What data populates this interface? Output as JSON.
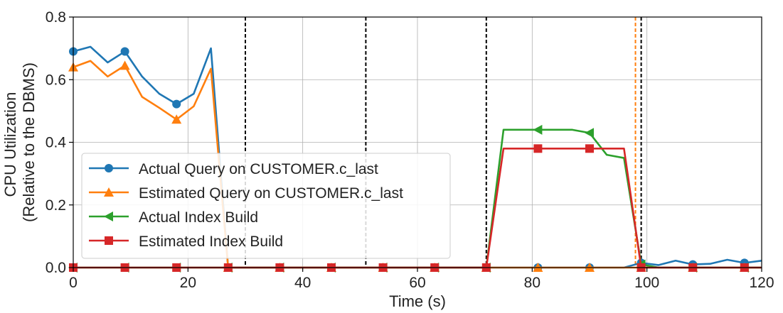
{
  "chart_data": {
    "type": "line",
    "xlabel": "Time (s)",
    "ylabel_lines": [
      "CPU Utilization",
      "(Relative to the DBMS)"
    ],
    "xlim": [
      0,
      120
    ],
    "ylim": [
      0,
      0.8
    ],
    "x_ticks": [
      0,
      20,
      40,
      60,
      80,
      100,
      120
    ],
    "y_ticks": [
      0.0,
      0.2,
      0.4,
      0.6,
      0.8
    ],
    "x_tick_labels": [
      "0",
      "20",
      "40",
      "60",
      "80",
      "100",
      "120"
    ],
    "y_tick_labels": [
      "0.0",
      "0.2",
      "0.4",
      "0.6",
      "0.8"
    ],
    "grid": true,
    "legend_position": "lower-left",
    "vertical_lines": [
      {
        "x": 30,
        "color": "#000000",
        "style": "dashed"
      },
      {
        "x": 51,
        "color": "#000000",
        "style": "dashed"
      },
      {
        "x": 72,
        "color": "#000000",
        "style": "dashed"
      },
      {
        "x": 98,
        "color": "#ff7f0e",
        "style": "dashed"
      },
      {
        "x": 99,
        "color": "#000000",
        "style": "dashed"
      }
    ],
    "series": [
      {
        "name": "Actual Query on CUSTOMER.c_last",
        "color": "#1f77b4",
        "marker": "circle",
        "x": [
          0,
          3,
          6,
          9,
          12,
          15,
          18,
          21,
          24,
          27,
          30,
          33,
          36,
          39,
          42,
          45,
          48,
          51,
          54,
          57,
          60,
          63,
          66,
          69,
          72,
          75,
          78,
          81,
          84,
          87,
          90,
          93,
          96,
          99,
          102,
          105,
          108,
          111,
          114,
          117,
          120
        ],
        "y": [
          0.69,
          0.705,
          0.655,
          0.69,
          0.61,
          0.555,
          0.522,
          0.555,
          0.7,
          0.0,
          0.0,
          0.0,
          0.0,
          0.0,
          0.0,
          0.0,
          0.0,
          0.0,
          0.0,
          0.0,
          0.0,
          0.0,
          0.0,
          0.0,
          0.0,
          0.0,
          0.0,
          0.0,
          0.0,
          0.0,
          0.0,
          0.0,
          0.0,
          0.015,
          0.008,
          0.022,
          0.01,
          0.012,
          0.025,
          0.015,
          0.022
        ],
        "marker_x": [
          0,
          9,
          18,
          27,
          36,
          45,
          54,
          63,
          72,
          81,
          90,
          99,
          108,
          117
        ]
      },
      {
        "name": "Estimated Query on CUSTOMER.c_last",
        "color": "#ff7f0e",
        "marker": "triangle-up",
        "x": [
          0,
          3,
          6,
          9,
          12,
          15,
          18,
          21,
          24,
          27,
          30,
          33,
          36,
          39,
          42,
          45,
          48,
          51,
          54,
          57,
          60,
          63,
          66,
          69,
          72,
          75,
          78,
          81,
          84,
          87,
          90,
          93,
          96,
          99,
          102,
          105,
          108,
          111,
          114,
          117,
          120
        ],
        "y": [
          0.64,
          0.66,
          0.61,
          0.645,
          0.545,
          0.51,
          0.473,
          0.515,
          0.635,
          0.0,
          0.0,
          0.0,
          0.0,
          0.0,
          0.0,
          0.0,
          0.0,
          0.0,
          0.0,
          0.0,
          0.0,
          0.0,
          0.0,
          0.0,
          0.0,
          0.0,
          0.0,
          0.0,
          0.0,
          0.0,
          0.0,
          0.0,
          0.0,
          0.0,
          0.0,
          0.0,
          0.0,
          0.0,
          0.0,
          0.0,
          0.0
        ],
        "marker_x": [
          0,
          9,
          18,
          27,
          36,
          45,
          54,
          63,
          72,
          81,
          90,
          99,
          108,
          117
        ]
      },
      {
        "name": "Actual Index Build",
        "color": "#2ca02c",
        "marker": "triangle-left",
        "x": [
          0,
          3,
          6,
          9,
          12,
          15,
          18,
          21,
          24,
          27,
          30,
          33,
          36,
          39,
          42,
          45,
          48,
          51,
          54,
          57,
          60,
          63,
          66,
          69,
          72,
          75,
          78,
          81,
          84,
          87,
          90,
          93,
          96,
          99,
          102,
          105,
          108,
          111,
          114,
          117,
          120
        ],
        "y": [
          0.0,
          0.0,
          0.0,
          0.0,
          0.0,
          0.0,
          0.0,
          0.0,
          0.0,
          0.0,
          0.0,
          0.0,
          0.0,
          0.0,
          0.0,
          0.0,
          0.0,
          0.0,
          0.0,
          0.0,
          0.0,
          0.0,
          0.0,
          0.0,
          0.0,
          0.44,
          0.44,
          0.44,
          0.44,
          0.44,
          0.43,
          0.36,
          0.35,
          0.01,
          0.0,
          0.0,
          0.0,
          0.0,
          0.0,
          0.0,
          0.0
        ],
        "marker_x": [
          0,
          9,
          18,
          27,
          36,
          45,
          54,
          63,
          72,
          81,
          90,
          99,
          108,
          117
        ]
      },
      {
        "name": "Estimated Index Build",
        "color": "#d62728",
        "marker": "square",
        "x": [
          0,
          3,
          6,
          9,
          12,
          15,
          18,
          21,
          24,
          27,
          30,
          33,
          36,
          39,
          42,
          45,
          48,
          51,
          54,
          57,
          60,
          63,
          66,
          69,
          72,
          75,
          78,
          81,
          84,
          87,
          90,
          93,
          96,
          99,
          102,
          105,
          108,
          111,
          114,
          117,
          120
        ],
        "y": [
          0.0,
          0.0,
          0.0,
          0.0,
          0.0,
          0.0,
          0.0,
          0.0,
          0.0,
          0.0,
          0.0,
          0.0,
          0.0,
          0.0,
          0.0,
          0.0,
          0.0,
          0.0,
          0.0,
          0.0,
          0.0,
          0.0,
          0.0,
          0.0,
          0.0,
          0.38,
          0.38,
          0.38,
          0.38,
          0.38,
          0.38,
          0.38,
          0.38,
          0.0,
          0.0,
          0.0,
          0.0,
          0.0,
          0.0,
          0.0,
          0.0
        ],
        "marker_x": [
          0,
          9,
          18,
          27,
          36,
          45,
          54,
          63,
          72,
          81,
          90,
          99,
          108,
          117
        ]
      }
    ]
  }
}
